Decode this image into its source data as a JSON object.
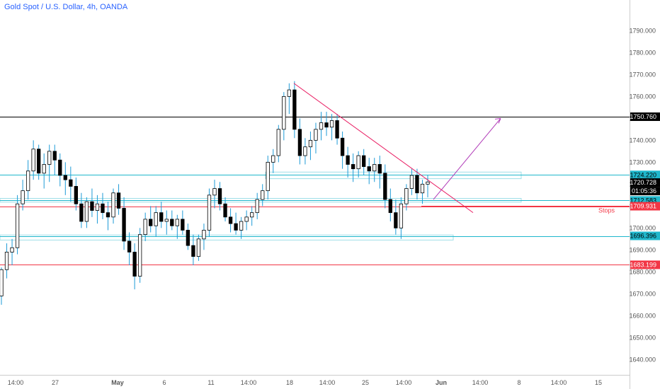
{
  "chart_data": {
    "type": "candlestick",
    "title": "Gold Spot / U.S. Dollar, 4h, OANDA",
    "y_ticks": [
      1640,
      1650,
      1660,
      1670,
      1680,
      1690,
      1700,
      1710,
      1720,
      1730,
      1740,
      1750,
      1760,
      1770,
      1780,
      1790
    ],
    "ylim": [
      1633,
      1804
    ],
    "x_ticks": [
      "14:00",
      "27",
      "May",
      "6",
      "11",
      "14:00",
      "18",
      "14:00",
      "25",
      "14:00",
      "Jun",
      "14:00",
      "8",
      "14:00",
      "15"
    ],
    "candles": [
      [
        1669,
        1682,
        1665,
        1681
      ],
      [
        1681,
        1693,
        1677,
        1689
      ],
      [
        1689,
        1695,
        1683,
        1691
      ],
      [
        1691,
        1715,
        1688,
        1711
      ],
      [
        1711,
        1722,
        1708,
        1717
      ],
      [
        1717,
        1731,
        1713,
        1726
      ],
      [
        1726,
        1740,
        1722,
        1736
      ],
      [
        1736,
        1738,
        1722,
        1725
      ],
      [
        1725,
        1734,
        1718,
        1729
      ],
      [
        1729,
        1738,
        1721,
        1735
      ],
      [
        1735,
        1738,
        1724,
        1731
      ],
      [
        1731,
        1734,
        1719,
        1724
      ],
      [
        1724,
        1730,
        1715,
        1722
      ],
      [
        1722,
        1728,
        1712,
        1719
      ],
      [
        1719,
        1723,
        1708,
        1711
      ],
      [
        1711,
        1716,
        1700,
        1703
      ],
      [
        1703,
        1714,
        1700,
        1712
      ],
      [
        1712,
        1718,
        1705,
        1708
      ],
      [
        1708,
        1715,
        1702,
        1711
      ],
      [
        1711,
        1716,
        1704,
        1707
      ],
      [
        1707,
        1712,
        1699,
        1705
      ],
      [
        1705,
        1718,
        1702,
        1716
      ],
      [
        1716,
        1720,
        1706,
        1709
      ],
      [
        1709,
        1714,
        1690,
        1694
      ],
      [
        1694,
        1698,
        1683,
        1689
      ],
      [
        1689,
        1693,
        1672,
        1678
      ],
      [
        1678,
        1700,
        1675,
        1697
      ],
      [
        1697,
        1707,
        1694,
        1704
      ],
      [
        1704,
        1710,
        1698,
        1701
      ],
      [
        1701,
        1710,
        1696,
        1707
      ],
      [
        1707,
        1712,
        1700,
        1703
      ],
      [
        1703,
        1708,
        1697,
        1704
      ],
      [
        1704,
        1708,
        1699,
        1701
      ],
      [
        1701,
        1706,
        1695,
        1704
      ],
      [
        1704,
        1708,
        1697,
        1699
      ],
      [
        1699,
        1702,
        1690,
        1692
      ],
      [
        1692,
        1697,
        1683,
        1687
      ],
      [
        1687,
        1697,
        1685,
        1695
      ],
      [
        1695,
        1702,
        1690,
        1699
      ],
      [
        1699,
        1718,
        1696,
        1715
      ],
      [
        1715,
        1722,
        1709,
        1718
      ],
      [
        1718,
        1721,
        1708,
        1711
      ],
      [
        1711,
        1714,
        1703,
        1705
      ],
      [
        1705,
        1709,
        1698,
        1702
      ],
      [
        1702,
        1707,
        1697,
        1699
      ],
      [
        1699,
        1705,
        1695,
        1703
      ],
      [
        1703,
        1708,
        1699,
        1705
      ],
      [
        1705,
        1710,
        1701,
        1707
      ],
      [
        1707,
        1716,
        1704,
        1713
      ],
      [
        1713,
        1720,
        1710,
        1717
      ],
      [
        1717,
        1733,
        1713,
        1730
      ],
      [
        1730,
        1736,
        1725,
        1733
      ],
      [
        1733,
        1747,
        1730,
        1745
      ],
      [
        1745,
        1762,
        1740,
        1760
      ],
      [
        1760,
        1766,
        1752,
        1763
      ],
      [
        1763,
        1767,
        1741,
        1745
      ],
      [
        1745,
        1750,
        1729,
        1733
      ],
      [
        1733,
        1741,
        1729,
        1737
      ],
      [
        1737,
        1744,
        1731,
        1740
      ],
      [
        1740,
        1748,
        1734,
        1745
      ],
      [
        1745,
        1753,
        1740,
        1748
      ],
      [
        1748,
        1753,
        1742,
        1746
      ],
      [
        1746,
        1752,
        1740,
        1749
      ],
      [
        1749,
        1752,
        1738,
        1741
      ],
      [
        1741,
        1744,
        1727,
        1733
      ],
      [
        1733,
        1737,
        1723,
        1729
      ],
      [
        1729,
        1734,
        1721,
        1727
      ],
      [
        1727,
        1735,
        1723,
        1733
      ],
      [
        1733,
        1736,
        1724,
        1728
      ],
      [
        1728,
        1732,
        1720,
        1726
      ],
      [
        1726,
        1732,
        1721,
        1729
      ],
      [
        1729,
        1733,
        1718,
        1725
      ],
      [
        1725,
        1729,
        1709,
        1713
      ],
      [
        1713,
        1718,
        1703,
        1707
      ],
      [
        1707,
        1713,
        1697,
        1700
      ],
      [
        1700,
        1714,
        1695,
        1711
      ],
      [
        1711,
        1720,
        1708,
        1718
      ],
      [
        1718,
        1727,
        1715,
        1724
      ],
      [
        1724,
        1727,
        1713,
        1716
      ],
      [
        1716,
        1722,
        1711,
        1720
      ],
      [
        1720,
        1724,
        1714,
        1721
      ]
    ],
    "horizontal_levels": [
      {
        "price": 1750.76,
        "label": "1750.760",
        "color": "#000000"
      },
      {
        "price": 1724.22,
        "label": "1724.220",
        "color": "#1fb7cc"
      },
      {
        "price": 1712.583,
        "label": "1712.583",
        "color": "#1fb7cc"
      },
      {
        "price": 1709.931,
        "label": "1709.931",
        "color": "#f23645"
      },
      {
        "price": 1696.396,
        "label": "1696.396",
        "color": "#1fb7cc"
      },
      {
        "price": 1683.199,
        "label": "1683.199",
        "color": "#f23645"
      }
    ],
    "last_price": {
      "price": 1720.728,
      "label": "1720.728",
      "countdown": "01:05:36"
    },
    "annotations": {
      "stops_label": "Stops"
    },
    "colors": {
      "up": "#ffffff",
      "down": "#000000",
      "wick": "#1e9bd7",
      "trend": "#e91e63",
      "projection": "#b03ab8",
      "zone": "#9fdfe8"
    }
  }
}
